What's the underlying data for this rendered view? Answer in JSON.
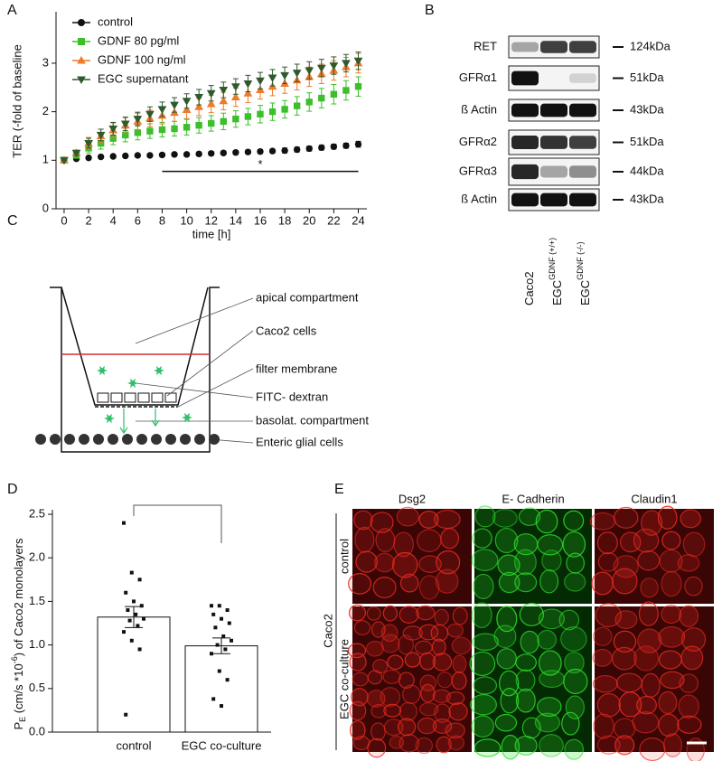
{
  "panel_labels": [
    "A",
    "B",
    "C",
    "D",
    "E"
  ],
  "chart_data": [
    {
      "type": "line",
      "ylabel": "TER (-fold of baseline",
      "xlabel": "time [h]",
      "x": [
        0,
        1,
        2,
        3,
        4,
        5,
        6,
        7,
        8,
        9,
        10,
        11,
        12,
        13,
        14,
        15,
        16,
        17,
        18,
        19,
        20,
        21,
        22,
        23,
        24
      ],
      "xlim": [
        -0.66,
        24.7
      ],
      "xticks": [
        0,
        2,
        4,
        6,
        8,
        10,
        12,
        14,
        16,
        18,
        20,
        22,
        24
      ],
      "ylim": [
        0,
        4.06
      ],
      "yticks": [
        0,
        1,
        2,
        3
      ],
      "legend": "upper left",
      "series": [
        {
          "name": "control",
          "color": "#111111",
          "marker": "circle",
          "values": [
            1,
            1.03,
            1.05,
            1.07,
            1.08,
            1.09,
            1.1,
            1.1,
            1.11,
            1.12,
            1.12,
            1.13,
            1.14,
            1.15,
            1.16,
            1.17,
            1.18,
            1.19,
            1.2,
            1.22,
            1.24,
            1.26,
            1.28,
            1.3,
            1.33
          ],
          "errors": [
            0,
            0.02,
            0.03,
            0.03,
            0.03,
            0.03,
            0.03,
            0.03,
            0.03,
            0.03,
            0.03,
            0.04,
            0.04,
            0.04,
            0.04,
            0.04,
            0.04,
            0.04,
            0.05,
            0.05,
            0.05,
            0.05,
            0.05,
            0.05,
            0.06
          ]
        },
        {
          "name": "GDNF 80 pg/ml",
          "color": "#3cbf2a",
          "marker": "square",
          "values": [
            1,
            1.1,
            1.25,
            1.35,
            1.45,
            1.52,
            1.57,
            1.6,
            1.63,
            1.65,
            1.68,
            1.72,
            1.76,
            1.8,
            1.85,
            1.9,
            1.95,
            2.0,
            2.05,
            2.12,
            2.2,
            2.28,
            2.36,
            2.44,
            2.52
          ],
          "errors": [
            0,
            0.05,
            0.1,
            0.12,
            0.13,
            0.14,
            0.15,
            0.15,
            0.15,
            0.15,
            0.16,
            0.16,
            0.16,
            0.17,
            0.17,
            0.17,
            0.18,
            0.18,
            0.18,
            0.19,
            0.19,
            0.2,
            0.2,
            0.2,
            0.2
          ]
        },
        {
          "name": "GDNF 100 ng/ml",
          "color": "#ef7a2a",
          "marker": "triangle",
          "values": [
            1,
            1.15,
            1.35,
            1.5,
            1.62,
            1.72,
            1.8,
            1.86,
            1.92,
            1.98,
            2.04,
            2.1,
            2.16,
            2.22,
            2.3,
            2.38,
            2.45,
            2.52,
            2.58,
            2.65,
            2.72,
            2.78,
            2.85,
            2.92,
            3.0
          ],
          "errors": [
            0,
            0.06,
            0.12,
            0.14,
            0.15,
            0.16,
            0.17,
            0.17,
            0.17,
            0.18,
            0.18,
            0.18,
            0.18,
            0.18,
            0.19,
            0.19,
            0.19,
            0.19,
            0.2,
            0.2,
            0.2,
            0.2,
            0.2,
            0.2,
            0.2
          ]
        },
        {
          "name": "EGC supernatant",
          "color": "#2e5a2e",
          "marker": "triangle-down",
          "values": [
            1,
            1.15,
            1.35,
            1.52,
            1.65,
            1.75,
            1.85,
            1.95,
            2.05,
            2.14,
            2.22,
            2.3,
            2.38,
            2.45,
            2.52,
            2.58,
            2.64,
            2.7,
            2.75,
            2.8,
            2.85,
            2.9,
            2.95,
            3.0,
            3.05
          ],
          "errors": [
            0,
            0.05,
            0.1,
            0.12,
            0.13,
            0.14,
            0.14,
            0.15,
            0.15,
            0.15,
            0.15,
            0.16,
            0.16,
            0.16,
            0.16,
            0.17,
            0.17,
            0.17,
            0.17,
            0.18,
            0.18,
            0.18,
            0.18,
            0.18,
            0.18
          ]
        }
      ],
      "annotation": {
        "text": "*",
        "x": [
          8,
          24
        ],
        "y": 0.77
      }
    },
    {
      "type": "bar",
      "ylabel": [
        "P",
        "E",
        " (cm/s *10",
        "-6",
        ") of Caco2 monolayers"
      ],
      "categories": [
        "control",
        "EGC co-culture"
      ],
      "values": [
        1.32,
        0.99
      ],
      "errors": [
        0.12,
        0.09
      ],
      "color": "#ffffff",
      "points": [
        [
          2.4,
          1.83,
          1.75,
          1.6,
          1.5,
          1.45,
          1.4,
          1.35,
          1.3,
          1.28,
          1.22,
          1.15,
          1.05,
          0.95,
          0.2
        ],
        [
          1.45,
          1.45,
          1.4,
          1.35,
          1.3,
          1.25,
          1.2,
          1.1,
          1.05,
          1.0,
          0.95,
          0.9,
          0.7,
          0.6,
          0.38,
          0.3
        ]
      ],
      "ylim": [
        0,
        2.5
      ],
      "yticks": [
        {
          "value": 0,
          "label": "0.0"
        },
        0.5,
        {
          "value": 1,
          "label": "1.0"
        },
        1.5,
        {
          "value": 2,
          "label": "2.0"
        },
        2.5
      ]
    }
  ],
  "blot": {
    "rows": [
      {
        "label": "RET",
        "size": "124kDa"
      },
      {
        "label": "GFRα1",
        "size": "51kDa"
      },
      {
        "label": "ß Actin",
        "size": "43kDa"
      },
      {
        "label": "GFRα2",
        "size": "51kDa"
      },
      {
        "label": "GFRα3",
        "size": "44kDa"
      },
      {
        "label": "ß Actin",
        "size": "43kDa"
      }
    ],
    "lanes": [
      {
        "name": "Caco2"
      },
      {
        "name": "EGC",
        "sup": "GDNF (+/+)"
      },
      {
        "name": "EGC",
        "sup": "GDNF (-/-)"
      }
    ]
  },
  "diagram": {
    "labels": [
      "apical compartment",
      "Caco2 cells",
      "filter membrane",
      "FITC- dextran",
      "basolat. compartment",
      "Enteric glial cells"
    ]
  },
  "microscopy": {
    "columns": [
      "Dsg2",
      "E- Cadherin",
      "Claudin1"
    ],
    "rows": [
      "control",
      "EGC co-culture"
    ],
    "group": "Caco2"
  }
}
